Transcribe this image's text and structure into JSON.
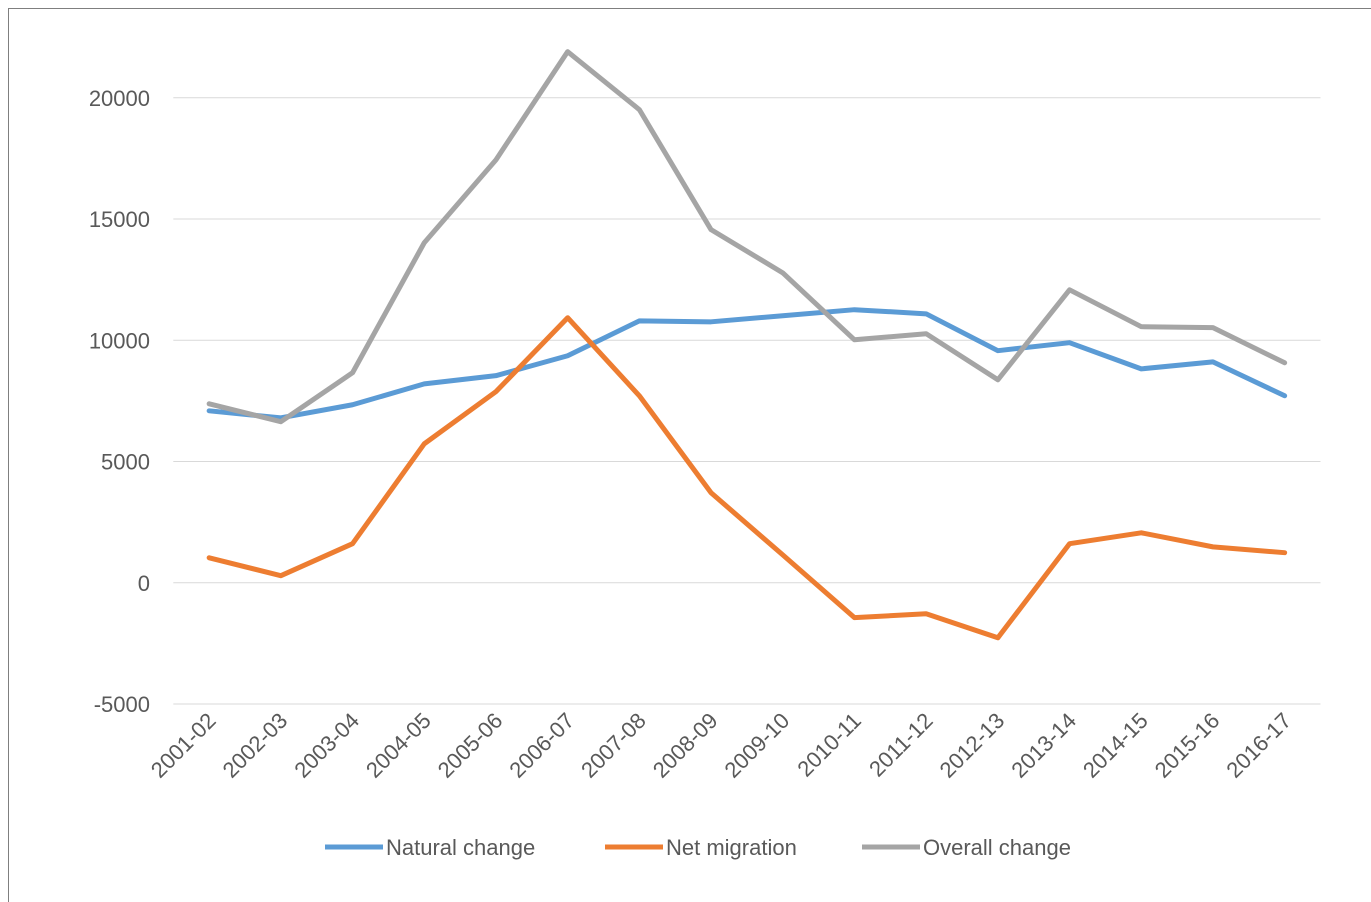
{
  "chart_data": {
    "type": "line",
    "categories": [
      "2001-02",
      "2002-03",
      "2003-04",
      "2004-05",
      "2005-06",
      "2006-07",
      "2007-08",
      "2008-09",
      "2009-10",
      "2010-11",
      "2011-12",
      "2012-13",
      "2013-14",
      "2014-15",
      "2015-16",
      "2016-17"
    ],
    "series": [
      {
        "name": "Natural change",
        "color": "#5b9bd5",
        "values": [
          7090,
          6800,
          7340,
          8200,
          8540,
          9360,
          10800,
          10760,
          11010,
          11260,
          11090,
          9570,
          9900,
          8820,
          9110,
          7710
        ]
      },
      {
        "name": "Net migration",
        "color": "#ed7d31",
        "values": [
          1030,
          290,
          1610,
          5730,
          7880,
          10930,
          7710,
          3710,
          1150,
          -1440,
          -1280,
          -2270,
          1610,
          2060,
          1480,
          1240
        ]
      },
      {
        "name": "Overall change",
        "color": "#a5a5a5",
        "values": [
          7380,
          6640,
          8660,
          14020,
          17440,
          21900,
          19510,
          14560,
          12780,
          10020,
          10270,
          8370,
          12080,
          10560,
          10520,
          9070
        ]
      }
    ],
    "ylim": [
      -5000,
      22500
    ],
    "yticks": [
      -5000,
      0,
      5000,
      10000,
      15000,
      20000
    ],
    "grid": true,
    "legend": "bottom"
  }
}
